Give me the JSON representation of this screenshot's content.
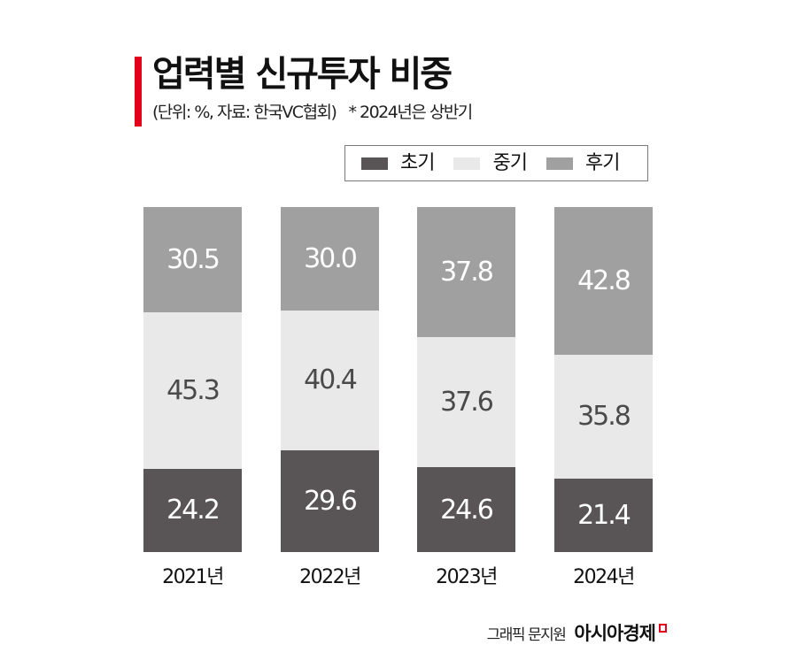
{
  "header": {
    "title": "업력별 신규투자 비중",
    "subtitle": "(단위: %, 자료: 한국VC협회)",
    "note": "* 2024년은 상반기",
    "accent_color": "#e2001a"
  },
  "legend": {
    "items": [
      {
        "label": "초기",
        "color": "#595556"
      },
      {
        "label": "중기",
        "color": "#e9e9e9"
      },
      {
        "label": "후기",
        "color": "#a0a0a0"
      }
    ]
  },
  "chart_data": {
    "type": "bar",
    "stacked": true,
    "orientation": "vertical",
    "title": "업력별 신규투자 비중",
    "subtitle": "(단위: %, 자료: 한국VC협회) * 2024년은 상반기",
    "xlabel": "",
    "ylabel": "",
    "unit": "%",
    "ylim": [
      0,
      100
    ],
    "grid": false,
    "legend_position": "top-right",
    "categories": [
      "2021년",
      "2022년",
      "2023년",
      "2024년"
    ],
    "series": [
      {
        "name": "초기",
        "color": "#595556",
        "values": [
          24.2,
          29.6,
          24.6,
          21.4
        ]
      },
      {
        "name": "중기",
        "color": "#e9e9e9",
        "values": [
          45.3,
          40.4,
          37.6,
          35.8
        ]
      },
      {
        "name": "후기",
        "color": "#a0a0a0",
        "values": [
          30.5,
          30.0,
          37.8,
          42.8
        ]
      }
    ],
    "data_labels": {
      "초기": [
        "24.2",
        "29.6",
        "24.6",
        "21.4"
      ],
      "중기": [
        "45.3",
        "40.4",
        "37.6",
        "35.8"
      ],
      "후기": [
        "30.5",
        "30.0",
        "37.8",
        "42.8"
      ]
    }
  },
  "footer": {
    "credit": "그래픽 문지원",
    "brand": "아시아경제",
    "brand_mark_icon": "asiae-logo-mark"
  }
}
